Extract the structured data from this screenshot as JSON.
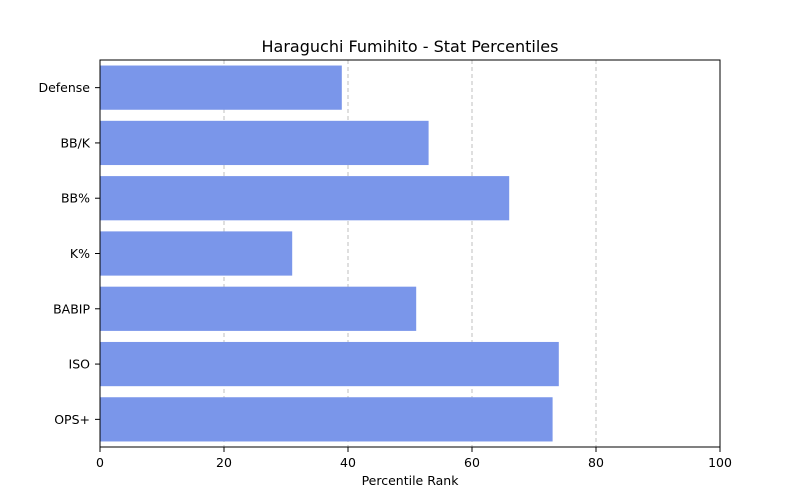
{
  "chart_data": {
    "type": "bar",
    "orientation": "horizontal",
    "title": "Haraguchi Fumihito - Stat Percentiles",
    "xlabel": "Percentile Rank",
    "ylabel": "",
    "xlim": [
      0,
      100
    ],
    "xticks": [
      0,
      20,
      40,
      60,
      80,
      100
    ],
    "grid": "x-dashed",
    "categories": [
      "OPS+",
      "ISO",
      "BABIP",
      "K%",
      "BB%",
      "BB/K",
      "Defense"
    ],
    "values": [
      73,
      74,
      51,
      31,
      66,
      53,
      39
    ],
    "bar_color": "#7a96ea"
  }
}
